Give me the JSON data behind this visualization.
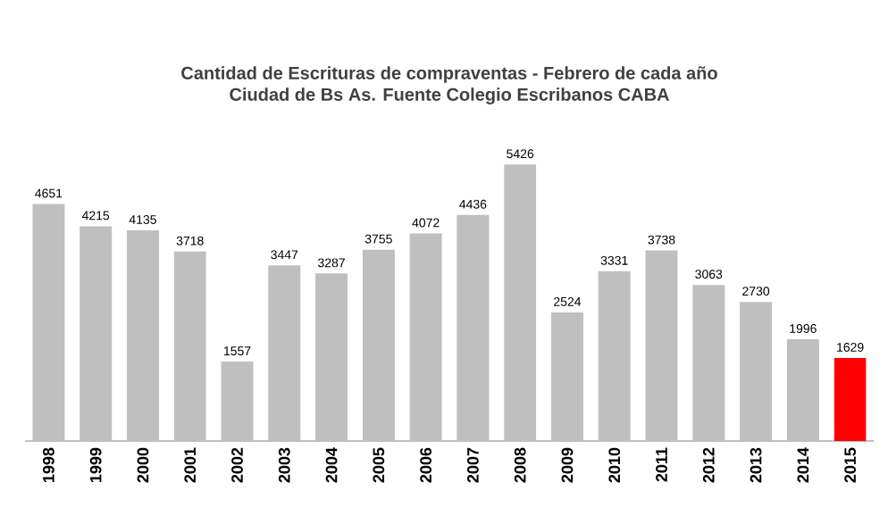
{
  "chart_data": {
    "type": "bar",
    "title": "Cantidad de Escrituras de compraventas - Febrero de cada año",
    "subtitle": "Ciudad de Bs As. Fuente Colegio Escribanos CABA",
    "categories": [
      "1998",
      "1999",
      "2000",
      "2001",
      "2002",
      "2003",
      "2004",
      "2005",
      "2006",
      "2007",
      "2008",
      "2009",
      "2010",
      "2011",
      "2012",
      "2013",
      "2014",
      "2015"
    ],
    "values": [
      4651,
      4215,
      4135,
      3718,
      1557,
      3447,
      3287,
      3755,
      4072,
      4436,
      5426,
      2524,
      3331,
      3738,
      3063,
      2730,
      1996,
      1629
    ],
    "colors": [
      "#bfbfbf",
      "#bfbfbf",
      "#bfbfbf",
      "#bfbfbf",
      "#bfbfbf",
      "#bfbfbf",
      "#bfbfbf",
      "#bfbfbf",
      "#bfbfbf",
      "#bfbfbf",
      "#bfbfbf",
      "#bfbfbf",
      "#bfbfbf",
      "#bfbfbf",
      "#bfbfbf",
      "#bfbfbf",
      "#bfbfbf",
      "#ff0000"
    ],
    "data_labels": true
  }
}
